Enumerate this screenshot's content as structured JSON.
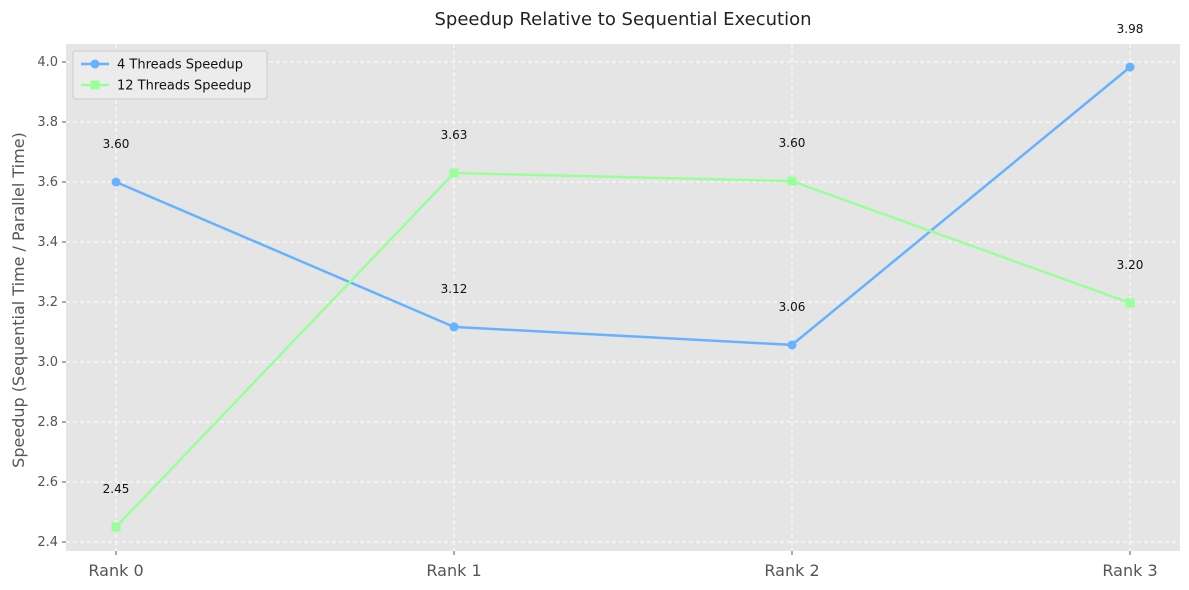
{
  "chart_data": {
    "type": "line",
    "title": "Speedup Relative to Sequential Execution",
    "xlabel": "",
    "ylabel": "Speedup (Sequential Time / Parallel Time)",
    "categories": [
      "Rank 0",
      "Rank 1",
      "Rank 2",
      "Rank 3"
    ],
    "ylim": [
      2.37,
      4.06
    ],
    "yticks": [
      "2.4",
      "2.6",
      "2.8",
      "3.0",
      "3.2",
      "3.4",
      "3.6",
      "3.8",
      "4.0"
    ],
    "grid": true,
    "legend_position": "top-left",
    "series": [
      {
        "name": "4 Threads Speedup",
        "values": [
          3.6,
          3.117,
          3.057,
          3.983
        ],
        "labels": [
          "3.60",
          "3.12",
          "3.06",
          "3.98"
        ],
        "color": "#66b2ff",
        "marker": "circle"
      },
      {
        "name": "12 Threads Speedup",
        "values": [
          2.45,
          3.63,
          3.603,
          3.197
        ],
        "labels": [
          "2.45",
          "3.63",
          "3.60",
          "3.20"
        ],
        "color": "#99ff99",
        "marker": "square"
      }
    ],
    "colors": {
      "plot_background": "#e5e5e5",
      "grid": "#ffffff"
    }
  }
}
